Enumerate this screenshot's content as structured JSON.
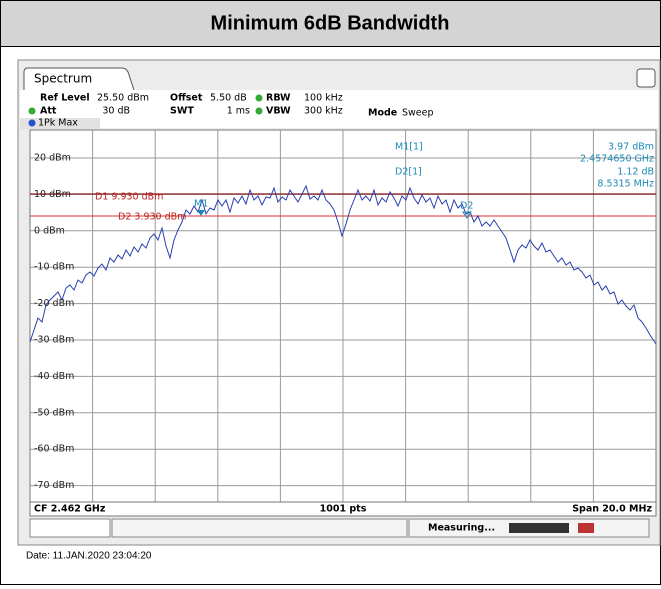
{
  "header": {
    "title": "Minimum 6dB Bandwidth"
  },
  "tab": "Spectrum",
  "settings": {
    "row1": [
      "Ref Level",
      "25.50 dBm",
      "Offset",
      "5.50 dB",
      "RBW",
      "100 kHz"
    ],
    "row2": [
      "Att",
      "30 dB",
      "SWT",
      "1 ms",
      "VBW",
      "300 kHz",
      "Mode",
      "Sweep"
    ]
  },
  "trace": "1Pk Max",
  "y_labels": [
    "20 dBm",
    "10 dBm",
    "0 dBm",
    "-10 dBm",
    "-20 dBm",
    "-30 dBm",
    "-40 dBm",
    "-50 dBm",
    "-60 dBm",
    "-70 dBm"
  ],
  "lines": {
    "d1": "D1 9.930 dBm",
    "d2": "D2 3.930 dBm"
  },
  "markers": {
    "m1": "M1",
    "d2": "D2"
  },
  "marker_table": {
    "m1_label": "M1[1]",
    "m1_level": "3.97 dBm",
    "m1_freq": "2.4574650 GHz",
    "d2_label": "D2[1]",
    "d2_level": "1.12 dB",
    "d2_freq": "8.5315 MHz"
  },
  "footer": {
    "cf": "CF 2.462 GHz",
    "pts": "1001 pts",
    "span": "Span 20.0 MHz"
  },
  "status": "Measuring...",
  "date": "Date: 11.JAN.2020 23:04:20"
}
